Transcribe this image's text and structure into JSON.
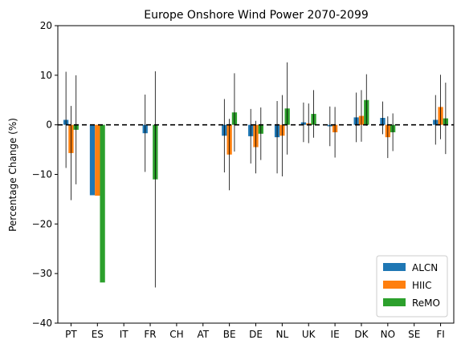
{
  "chart_data": {
    "type": "bar",
    "title": "Europe Onshore Wind Power 2070-2099",
    "xlabel": "",
    "ylabel": "Percentage Change (%)",
    "ylim": [
      -40,
      20
    ],
    "yticks": [
      -40,
      -30,
      -20,
      -10,
      0,
      10,
      20
    ],
    "grid": false,
    "zero_line": {
      "value": 0,
      "style": "dashed",
      "color": "#000000"
    },
    "legend_position": "bottom-right",
    "categories": [
      "PT",
      "ES",
      "IT",
      "FR",
      "CH",
      "AT",
      "BE",
      "DE",
      "NL",
      "UK",
      "IE",
      "DK",
      "NO",
      "SE",
      "FI"
    ],
    "series": [
      {
        "name": "ALCN",
        "color": "#1f77b4",
        "values": [
          1.0,
          -14.2,
          null,
          -1.7,
          null,
          null,
          -2.2,
          -2.3,
          -2.5,
          0.5,
          -0.3,
          1.5,
          1.4,
          null,
          1.0
        ],
        "error": [
          9.7,
          null,
          null,
          7.8,
          null,
          null,
          7.4,
          5.5,
          7.3,
          4.0,
          4.0,
          5.0,
          3.3,
          null,
          5.0
        ]
      },
      {
        "name": "HIIC",
        "color": "#ff7f0e",
        "values": [
          -5.7,
          -14.3,
          null,
          null,
          null,
          null,
          -6.0,
          -4.5,
          -2.2,
          0.3,
          -1.5,
          1.8,
          -2.5,
          null,
          3.6
        ],
        "error": [
          9.5,
          null,
          null,
          null,
          null,
          null,
          7.2,
          5.3,
          8.2,
          4.0,
          5.1,
          5.2,
          4.2,
          null,
          6.5
        ]
      },
      {
        "name": "ReMO",
        "color": "#2ca02c",
        "values": [
          -1.0,
          -31.8,
          null,
          -11.0,
          null,
          null,
          2.5,
          -1.8,
          3.3,
          2.2,
          null,
          5.0,
          -1.5,
          null,
          1.3
        ],
        "error": [
          11.0,
          null,
          null,
          21.8,
          null,
          null,
          7.9,
          5.3,
          9.3,
          4.8,
          null,
          5.2,
          3.8,
          null,
          7.2
        ]
      }
    ]
  }
}
